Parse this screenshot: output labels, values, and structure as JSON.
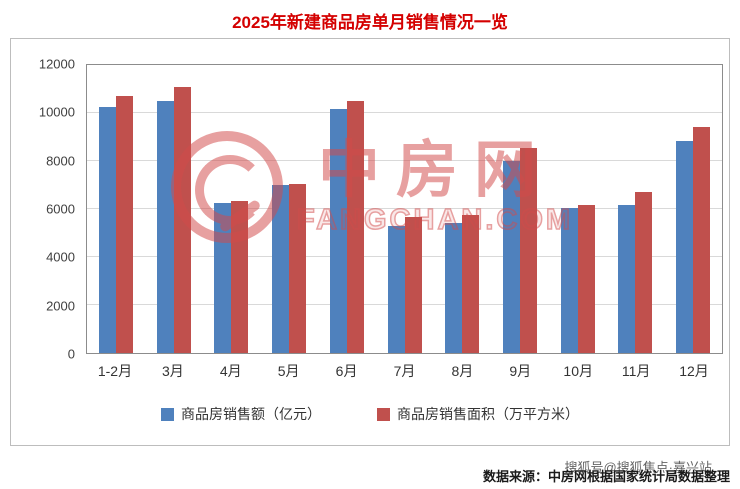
{
  "title": "2025年新建商品房单月销售情况一览",
  "chart_data": {
    "type": "bar",
    "categories": [
      "1-2月",
      "3月",
      "4月",
      "5月",
      "6月",
      "7月",
      "8月",
      "9月",
      "10月",
      "11月",
      "12月"
    ],
    "series": [
      {
        "key": "sales-amount",
        "name": "商品房销售额（亿元）",
        "color": "#4f81bd",
        "values": [
          10250,
          10500,
          6250,
          7000,
          10150,
          5300,
          5400,
          8000,
          6050,
          6150,
          8850
        ]
      },
      {
        "key": "sales-area",
        "name": "商品房销售面积（万平方米）",
        "color": "#c0504d",
        "values": [
          10700,
          11100,
          6350,
          7050,
          10500,
          5650,
          5750,
          8550,
          6150,
          6700,
          9400
        ]
      }
    ],
    "title": "2025年新建商品房单月销售情况一览",
    "xlabel": "",
    "ylabel": "",
    "ylim": [
      0,
      12000
    ],
    "yticks": [
      0,
      2000,
      4000,
      6000,
      8000,
      10000,
      12000
    ],
    "grid": true,
    "legend_position": "bottom"
  },
  "watermark": {
    "name": "中房网",
    "domain": "FANGCHAN.COM"
  },
  "footer": {
    "source": "数据来源：中房网根据国家统计局数据整理",
    "overlay": "搜狐号@搜狐焦点·嘉兴站"
  }
}
